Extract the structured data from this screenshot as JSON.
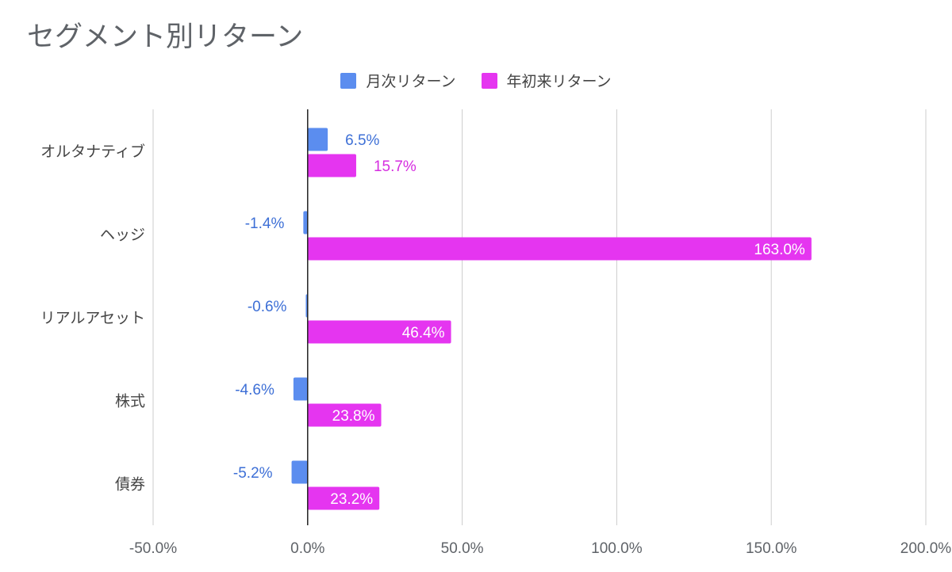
{
  "chart_data": {
    "type": "bar",
    "orientation": "horizontal",
    "title": "セグメント別リターン",
    "categories": [
      "オルタナティブ",
      "ヘッジ",
      "リアルアセット",
      "株式",
      "債券"
    ],
    "series": [
      {
        "name": "月次リターン",
        "color": "#5b8def",
        "values": [
          6.5,
          -1.4,
          -0.6,
          -4.6,
          -5.2
        ],
        "labels": [
          "6.5%",
          "-1.4%",
          "-0.6%",
          "-4.6%",
          "-5.2%"
        ]
      },
      {
        "name": "年初来リターン",
        "color": "#e535f0",
        "values": [
          15.7,
          163.0,
          46.4,
          23.8,
          23.2
        ],
        "labels": [
          "15.7%",
          "163.0%",
          "46.4%",
          "23.8%",
          "23.2%"
        ]
      }
    ],
    "xlim": [
      -50,
      200
    ],
    "xticks": [
      -50,
      0,
      50,
      100,
      150,
      200
    ],
    "xtick_labels": [
      "-50.0%",
      "0.0%",
      "50.0%",
      "100.0%",
      "150.0%",
      "200.0%"
    ],
    "grid": true,
    "legend_position": "top-center"
  }
}
